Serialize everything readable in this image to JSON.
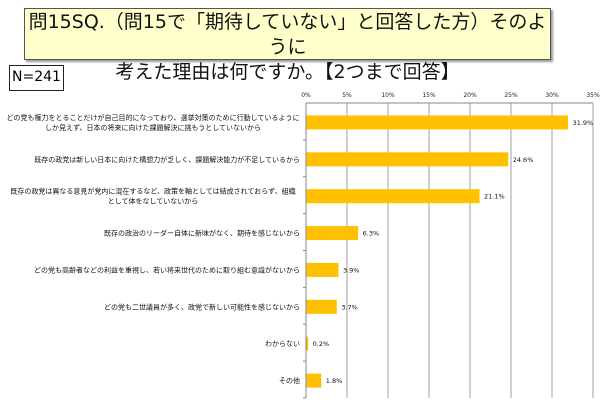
{
  "title": {
    "line1": "問15SQ.（問15で「期待していない」と回答した方）そのように",
    "line2": "考えた理由は何ですか。【2つまで回答】"
  },
  "sample_size": "N=241",
  "colors": {
    "bar": "#ffc000",
    "grid": "#a0a0a0",
    "title_bg": "#ffffcc"
  },
  "chart_data": {
    "type": "bar",
    "orientation": "horizontal",
    "title": "問15SQ.（問15で「期待していない」と回答した方）そのように考えた理由は何ですか。【2つまで回答】",
    "xlabel": "",
    "ylabel": "",
    "xlim": [
      0,
      35
    ],
    "ticks": [
      "0%",
      "5%",
      "10%",
      "15%",
      "20%",
      "25%",
      "30%",
      "35%"
    ],
    "grid": true,
    "categories": [
      [
        "どの党も権力をとることだけが自己目的になっており、選挙対策のために行動しているように",
        "しか見えず、日本の将来に向けた課題解決に挑もうとしていないから"
      ],
      [
        "既存の政党は新しい日本に向けた構想力が乏しく、課題解決能力が不足しているから"
      ],
      [
        "既存の政党は異なる意見が党内に混在するなど、政策を軸としては結成されておらず、組織",
        "として体をなしていないから"
      ],
      [
        "既存の政治のリーダー自体に新味がなく、期待を感じないから"
      ],
      [
        "どの党も高齢者などの利益を重視し、若い将来世代のために取り組む意識がないから"
      ],
      [
        "どの党も二世議員が多く、政党で新しい可能性を感じないから"
      ],
      [
        "わからない"
      ],
      [
        "その他"
      ]
    ],
    "values": [
      31.9,
      24.6,
      21.1,
      6.3,
      3.9,
      3.7,
      0.2,
      1.8
    ],
    "value_labels": [
      "31.9%",
      "24.6%",
      "21.1%",
      "6.3%",
      "3.9%",
      "3.7%",
      "0.2%",
      "1.8%"
    ]
  }
}
